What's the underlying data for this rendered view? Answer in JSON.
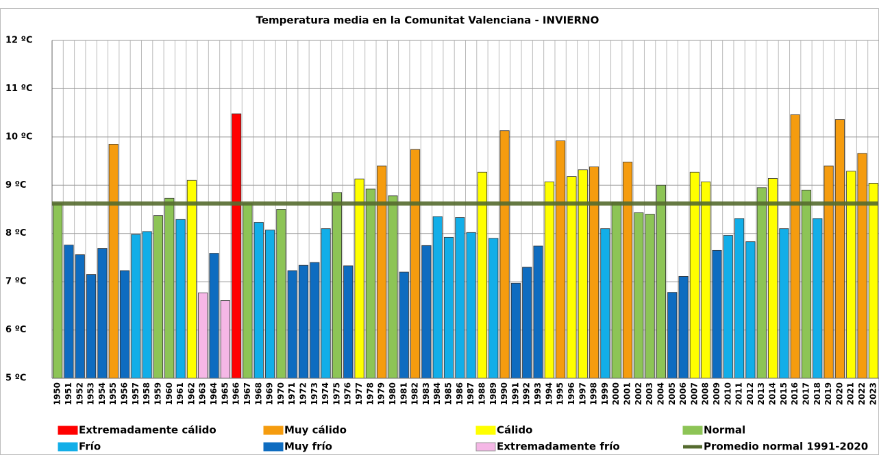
{
  "chart_data": {
    "type": "bar",
    "title": "Temperatura media en la Comunitat Valenciana - INVIERNO",
    "categories": [
      "1950",
      "1951",
      "1952",
      "1953",
      "1954",
      "1955",
      "1956",
      "1957",
      "1958",
      "1959",
      "1960",
      "1961",
      "1962",
      "1963",
      "1964",
      "1965",
      "1966",
      "1967",
      "1968",
      "1969",
      "1970",
      "1971",
      "1972",
      "1973",
      "1974",
      "1975",
      "1976",
      "1977",
      "1978",
      "1979",
      "1980",
      "1981",
      "1982",
      "1983",
      "1984",
      "1985",
      "1986",
      "1987",
      "1988",
      "1989",
      "1990",
      "1991",
      "1992",
      "1993",
      "1994",
      "1995",
      "1996",
      "1997",
      "1998",
      "1999",
      "2000",
      "2001",
      "2002",
      "2003",
      "2004",
      "2005",
      "2006",
      "2007",
      "2008",
      "2009",
      "2010",
      "2011",
      "2012",
      "2013",
      "2014",
      "2015",
      "2016",
      "2017",
      "2018",
      "2019",
      "2020",
      "2021",
      "2022",
      "2023"
    ],
    "values": [
      8.62,
      7.76,
      7.56,
      7.15,
      7.69,
      9.85,
      7.23,
      7.98,
      8.04,
      8.37,
      8.73,
      8.29,
      9.1,
      6.77,
      7.59,
      6.61,
      10.48,
      8.62,
      8.23,
      8.07,
      8.5,
      7.23,
      7.34,
      7.4,
      8.1,
      8.85,
      7.33,
      9.13,
      8.92,
      9.4,
      8.78,
      7.2,
      9.74,
      7.75,
      8.35,
      7.92,
      8.33,
      8.02,
      9.27,
      7.9,
      10.13,
      6.97,
      7.3,
      7.74,
      9.07,
      9.92,
      9.18,
      9.32,
      9.38,
      8.1,
      8.65,
      9.48,
      8.43,
      8.4,
      9.0,
      6.78,
      7.11,
      9.27,
      9.07,
      7.65,
      7.96,
      8.31,
      7.83,
      8.95,
      9.14,
      8.1,
      10.46,
      8.9,
      8.31,
      9.4,
      10.36,
      9.29,
      9.66,
      9.04
    ],
    "class": [
      3,
      5,
      5,
      5,
      5,
      1,
      5,
      4,
      4,
      3,
      3,
      4,
      2,
      6,
      5,
      6,
      0,
      3,
      4,
      4,
      3,
      5,
      5,
      5,
      4,
      3,
      5,
      2,
      3,
      1,
      3,
      5,
      1,
      5,
      4,
      4,
      4,
      4,
      2,
      4,
      1,
      5,
      5,
      5,
      2,
      1,
      2,
      2,
      1,
      4,
      3,
      1,
      3,
      3,
      3,
      5,
      5,
      2,
      2,
      5,
      4,
      4,
      4,
      3,
      2,
      4,
      1,
      3,
      4,
      1,
      1,
      2,
      1,
      2
    ],
    "legend": [
      {
        "name": "Extremadamente cálido",
        "color": "#ff0000"
      },
      {
        "name": "Muy cálido",
        "color": "#f59c0f"
      },
      {
        "name": "Cálido",
        "color": "#ffff00"
      },
      {
        "name": "Normal",
        "color": "#8dc456"
      },
      {
        "name": "Frío",
        "color": "#12aee8"
      },
      {
        "name": "Muy frío",
        "color": "#0e6cc0"
      },
      {
        "name": "Extremadamente frío",
        "color": "#f5b7e6"
      }
    ],
    "reference_line": {
      "name": "Promedio normal 1991-2020",
      "color": "#556b2f",
      "value": 8.62
    },
    "ylim": [
      5,
      12
    ],
    "yticks": [
      {
        "value": 5,
        "label": "5 ºC"
      },
      {
        "value": 6,
        "label": "6 ºC"
      },
      {
        "value": 7,
        "label": "7 ºC"
      },
      {
        "value": 8,
        "label": "8 ºC"
      },
      {
        "value": 9,
        "label": "9 ºC"
      },
      {
        "value": 10,
        "label": "10 ºC"
      },
      {
        "value": 11,
        "label": "11 ºC"
      },
      {
        "value": 12,
        "label": "12 ºC"
      }
    ],
    "grid": true
  }
}
